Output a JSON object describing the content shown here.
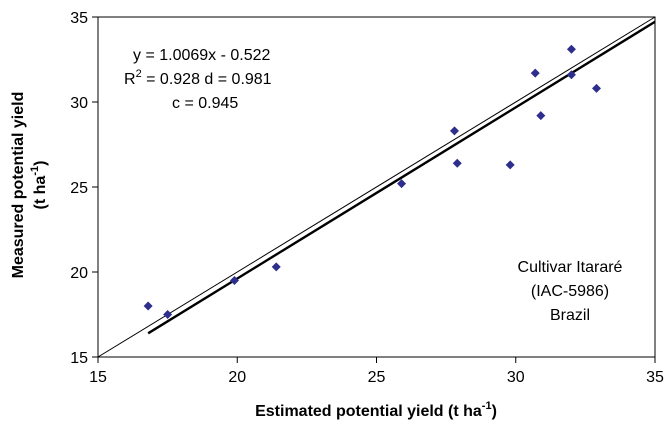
{
  "chart_data": {
    "type": "scatter",
    "title": "",
    "xlabel": "Estimated potential yield (t ha",
    "xlabel_sup": "-1",
    "xlabel_end": ")",
    "ylabel_line1": "Measured potential yield",
    "ylabel_line2": "(t ha",
    "ylabel_sup": "-1",
    "ylabel_end": ")",
    "xlim": [
      15,
      35
    ],
    "ylim": [
      15,
      35
    ],
    "xticks": [
      "15",
      "20",
      "25",
      "30",
      "35"
    ],
    "yticks": [
      "15",
      "20",
      "25",
      "30",
      "35"
    ],
    "grid": false,
    "marker_color": "#2e2e8c",
    "points": [
      {
        "x": 16.8,
        "y": 18.0
      },
      {
        "x": 17.5,
        "y": 17.5
      },
      {
        "x": 19.9,
        "y": 19.5
      },
      {
        "x": 21.4,
        "y": 20.3
      },
      {
        "x": 25.9,
        "y": 25.2
      },
      {
        "x": 27.8,
        "y": 28.3
      },
      {
        "x": 27.9,
        "y": 26.4
      },
      {
        "x": 29.8,
        "y": 26.3
      },
      {
        "x": 30.7,
        "y": 31.7
      },
      {
        "x": 30.9,
        "y": 29.2
      },
      {
        "x": 32.0,
        "y": 33.1
      },
      {
        "x": 32.0,
        "y": 31.6
      },
      {
        "x": 32.9,
        "y": 30.8
      }
    ],
    "regression": {
      "slope": 1.0069,
      "intercept": -0.522,
      "x_range": [
        16.8,
        35
      ]
    },
    "identity_line": {
      "x_range": [
        15,
        35
      ]
    },
    "annotations": {
      "equation": "y = 1.0069x - 0.522",
      "r2_prefix": "R",
      "r2_sup": "2",
      "r2_rest": " = 0.928  d = 0.981",
      "c_value": "c = 0.945"
    },
    "label_box": {
      "line1": "Cultivar Itararé",
      "line2": "(IAC-5986)",
      "line3": "Brazil"
    }
  }
}
